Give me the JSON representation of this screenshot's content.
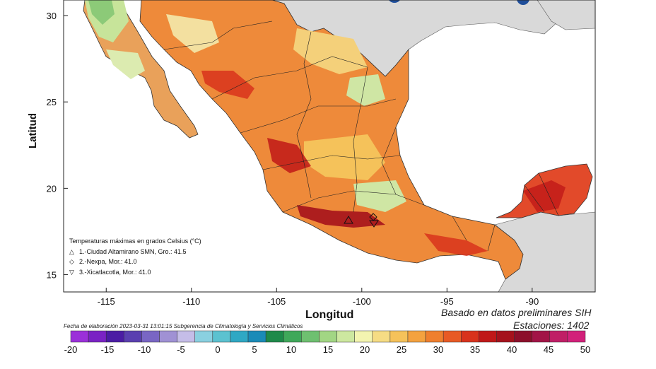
{
  "map": {
    "x_axis_title": "Longitud",
    "y_axis_title": "Latitud",
    "x_ticks": [
      "-115",
      "-110",
      "-105",
      "-100",
      "-95",
      "-90"
    ],
    "y_ticks": [
      "30",
      "25",
      "20",
      "15"
    ],
    "extent": {
      "lon": [
        -117.5,
        -86.3
      ],
      "lat": [
        14,
        30.9
      ]
    }
  },
  "legend": {
    "title": "Temperaturas máximas en grados Celsius (°C)",
    "entries": [
      {
        "symbol": "△",
        "label": "1.-Ciudad Altamirano SMN, Gro.: 41.5"
      },
      {
        "symbol": "◇",
        "label": "2.-Nexpa, Mor.: 41.0"
      },
      {
        "symbol": "▽",
        "label": "3.-Xicatlacotla, Mor.: 41.0"
      }
    ]
  },
  "info": {
    "basis": "Basado en datos preliminares SIH",
    "stations": "Estaciones:  1402",
    "footer": "Fecha de elaboración 2023-03-31 13:01:15 Subgerencia de Climatología y Servicios Climáticos"
  },
  "colorbar": {
    "labels": [
      "-20",
      "-15",
      "-10",
      "-5",
      "0",
      "5",
      "10",
      "15",
      "20",
      "25",
      "30",
      "35",
      "40",
      "45",
      "50"
    ],
    "colors": [
      "#9b30d9",
      "#7a22c4",
      "#4b1ca4",
      "#5a3fb0",
      "#7966c4",
      "#a091d4",
      "#c5bde8",
      "#8ad0e0",
      "#5cc2d0",
      "#2fa8c4",
      "#1a8bb8",
      "#1e8a4a",
      "#3fa85a",
      "#6ec070",
      "#a2d684",
      "#cde8a0",
      "#f3f4b0",
      "#f6dc84",
      "#f5c25a",
      "#f4a23f",
      "#ef7f2e",
      "#e85a24",
      "#d8321c",
      "#c01818",
      "#a5121c",
      "#8c0f2a",
      "#a21446",
      "#c01e66",
      "#d2207a"
    ]
  }
}
